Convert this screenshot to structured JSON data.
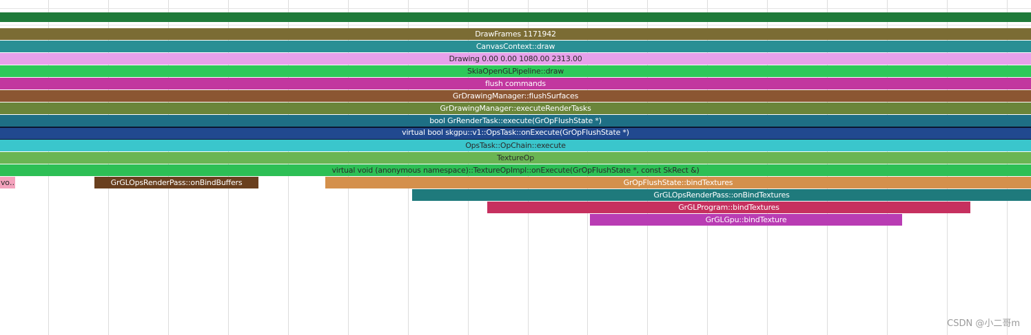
{
  "colors": {
    "background": "#ffffff",
    "gridline": "#dcdcdc",
    "top_band": "#1f7a3a"
  },
  "slices": [
    {
      "label": "DrawFrames 1171942",
      "color": "#7b6c34",
      "dark": false
    },
    {
      "label": "CanvasContext::draw",
      "color": "#2a8f94",
      "dark": false
    },
    {
      "label": "Drawing  0.00  0.00 1080.00 2313.00",
      "color": "#e7a0ea",
      "dark": true
    },
    {
      "label": "SkiaOpenGLPipeline::draw",
      "color": "#2ec85a",
      "dark": true
    },
    {
      "label": "flush commands",
      "color": "#c2379f",
      "dark": false
    },
    {
      "label": "GrDrawingManager::flushSurfaces",
      "color": "#8b5632",
      "dark": false
    },
    {
      "label": "GrDrawingManager::executeRenderTasks",
      "color": "#6a853a",
      "dark": false
    },
    {
      "label": "bool GrRenderTask::execute(GrOpFlushState *)",
      "color": "#1e6f85",
      "dark": false
    },
    {
      "label": "virtual bool skgpu::v1::OpsTask::onExecute(GrOpFlushState *)",
      "color": "#21498f",
      "dark": false,
      "selected": true
    },
    {
      "label": "OpsTask::OpChain::execute",
      "color": "#3ac6cc",
      "dark": true
    },
    {
      "label": "TextureOp",
      "color": "#6ab553",
      "dark": true
    },
    {
      "label": "virtual void (anonymous namespace)::TextureOpImpl::onExecute(GrOpFlushState *, const SkRect &)",
      "color": "#2dbf55",
      "dark": true
    },
    {
      "label": "vo…",
      "color": "#f4a3bd",
      "dark": true
    },
    {
      "label": "GrGLOpsRenderPass::onBindBuffers",
      "color": "#693f1e",
      "dark": false
    },
    {
      "label": "GrOpFlushState::bindTextures",
      "color": "#d4904c",
      "dark": false
    },
    {
      "label": "GrGLOpsRenderPass::onBindTextures",
      "color": "#1f7a7c",
      "dark": false
    },
    {
      "label": "GrGLProgram::bindTextures",
      "color": "#c6305f",
      "dark": false
    },
    {
      "label": "GrGLGpu::bindTexture",
      "color": "#b93cb3",
      "dark": false
    }
  ],
  "watermark": "CSDN @小二哥m"
}
